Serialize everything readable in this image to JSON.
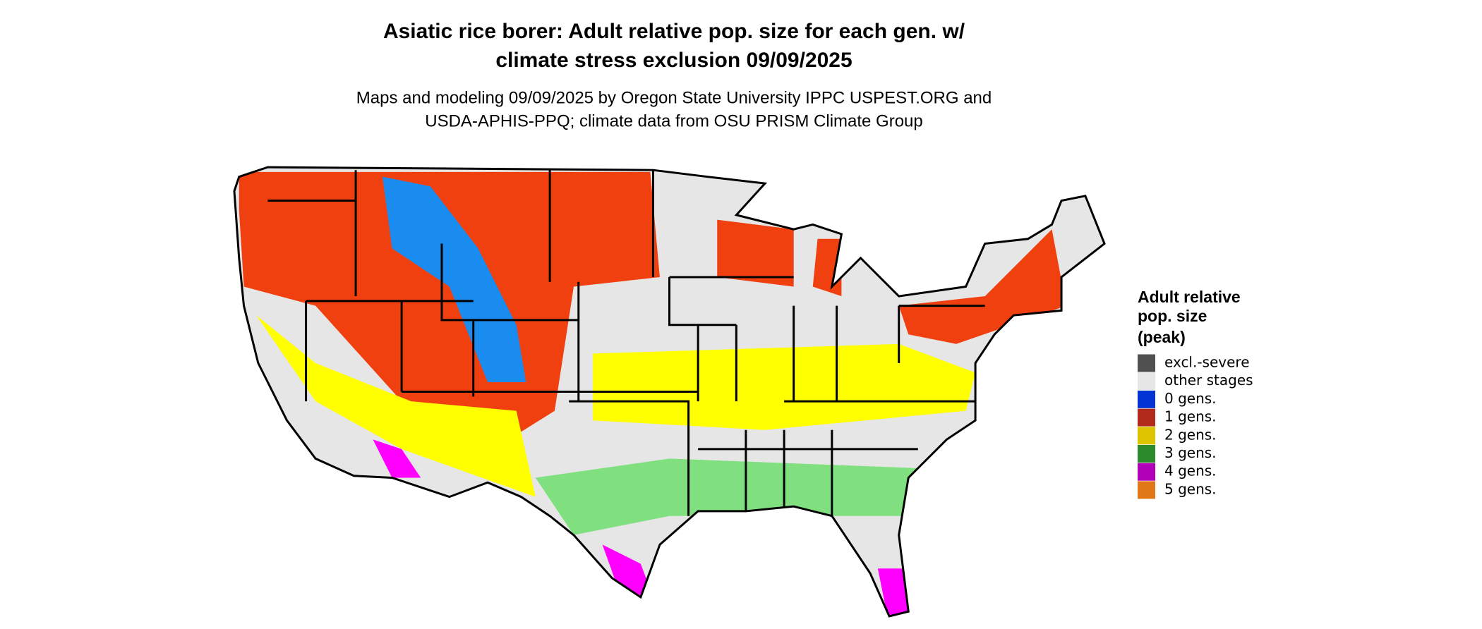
{
  "title": [
    "Asiatic rice borer: Adult relative pop. size for each gen. w/",
    "climate stress exclusion 09/09/2025"
  ],
  "subtitle": [
    "Maps and modeling 09/09/2025 by Oregon State University IPPC USPEST.ORG and",
    "USDA-APHIS-PPQ; climate data from OSU PRISM Climate Group"
  ],
  "legend": {
    "title": [
      "Adult relative",
      "pop. size",
      "(peak)"
    ],
    "items": [
      {
        "label": "excl.-severe",
        "color": "#505050"
      },
      {
        "label": "other stages",
        "color": "#e6e6e6"
      },
      {
        "label": "0 gens.",
        "color": "#0433d4"
      },
      {
        "label": "1 gens.",
        "color": "#b22a1c"
      },
      {
        "label": "2 gens.",
        "color": "#dcc400"
      },
      {
        "label": "3 gens.",
        "color": "#2c8a2c"
      },
      {
        "label": "4 gens.",
        "color": "#b000b8"
      },
      {
        "label": "5 gens.",
        "color": "#e07818"
      }
    ]
  }
}
